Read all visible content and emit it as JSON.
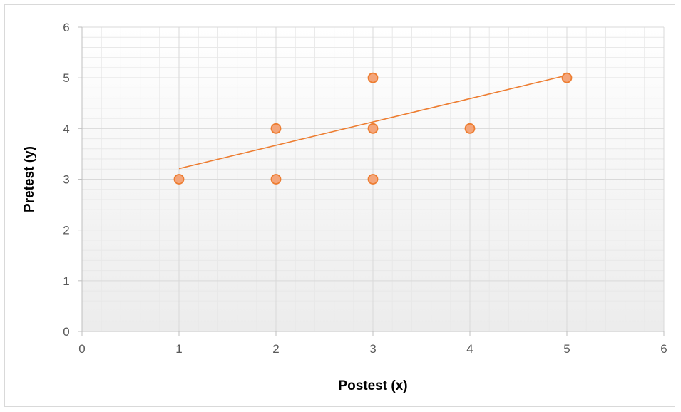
{
  "chart_data": {
    "type": "scatter",
    "title": "",
    "xlabel": "Postest (x)",
    "ylabel": "Pretest (y)",
    "xlim": [
      0,
      6
    ],
    "ylim": [
      0,
      6
    ],
    "x_ticks": [
      "0",
      "1",
      "2",
      "3",
      "4",
      "5",
      "6"
    ],
    "y_ticks": [
      "0",
      "1",
      "2",
      "3",
      "4",
      "5",
      "6"
    ],
    "grid": true,
    "minor_grid": true,
    "legend": "none",
    "points": [
      {
        "x": 1,
        "y": 3
      },
      {
        "x": 2,
        "y": 4
      },
      {
        "x": 2,
        "y": 3
      },
      {
        "x": 3,
        "y": 5
      },
      {
        "x": 3,
        "y": 4
      },
      {
        "x": 3,
        "y": 3
      },
      {
        "x": 4,
        "y": 4
      },
      {
        "x": 5,
        "y": 5
      }
    ],
    "trendline": {
      "type": "linear",
      "x_start": 1,
      "y_start": 3.21,
      "x_end": 5,
      "y_end": 5.05
    },
    "colors": {
      "marker_fill": "#f4a57a",
      "marker_stroke": "#ed7d31",
      "trendline": "#ed7d31",
      "major_grid": "#d9d9d9",
      "minor_grid": "#e8e8e8",
      "axis": "#bfbfbf",
      "plot_bg_top": "#ffffff",
      "plot_bg_bottom": "#ececec"
    }
  }
}
